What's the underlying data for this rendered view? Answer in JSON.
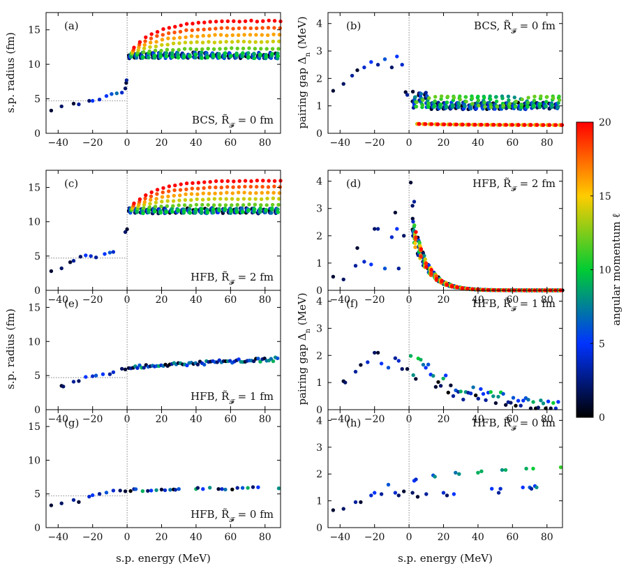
{
  "figure": {
    "xlabel": "s.p. energy (MeV)",
    "ylabel_left": "s.p. radius (fm)",
    "ylabel_right": "pairing gap Δ",
    "ylabel_right_sub": "n",
    "ylabel_right_unit": " (MeV)",
    "colorbar": {
      "label": "angular momentum ℓ",
      "ticks": [
        "0",
        "5",
        "10",
        "15",
        "20"
      ],
      "range": [
        0,
        20
      ],
      "colors": [
        "#000000",
        "#0033ff",
        "#00cc33",
        "#ffcc00",
        "#ff0000"
      ]
    }
  },
  "chart_data": [
    {
      "id": "a",
      "type": "scatter",
      "panel": "(a)",
      "annotation": "BCS, R̃",
      "annotation_sub": "𝓕",
      "annotation_tail": " = 0 fm",
      "xlim": [
        -47,
        89
      ],
      "ylim": [
        0,
        17.5
      ],
      "xticks": [
        -40,
        -20,
        0,
        20,
        40,
        60,
        80
      ],
      "yticks": [
        0,
        5,
        10,
        15
      ],
      "ref_y": 4.7,
      "bound": [
        [
          -44,
          3.3,
          1
        ],
        [
          -38,
          3.9,
          2
        ],
        [
          -31,
          4.3,
          1
        ],
        [
          -28,
          4.2,
          3
        ],
        [
          -22,
          4.7,
          2
        ],
        [
          -20,
          4.7,
          5
        ],
        [
          -16,
          4.9,
          4
        ],
        [
          -12,
          5.4,
          5
        ],
        [
          -9,
          5.7,
          6
        ],
        [
          -6,
          5.8,
          7
        ],
        [
          -3,
          5.9,
          4
        ],
        [
          -1,
          6.5,
          2
        ],
        [
          -0.5,
          7.3,
          1
        ],
        [
          -0.3,
          7.7,
          3
        ]
      ],
      "continuum": {
        "kind": "radius",
        "base": 11.3,
        "growth": 5.0,
        "jitter": 0.5,
        "spread": 0.8
      }
    },
    {
      "id": "b",
      "type": "scatter",
      "panel": "(b)",
      "annotation": "BCS, R̃",
      "annotation_sub": "𝓕",
      "annotation_tail": " = 0 fm",
      "xlim": [
        -47,
        89
      ],
      "ylim": [
        0,
        4.4
      ],
      "xticks": [
        -40,
        -20,
        0,
        20,
        40,
        60,
        80
      ],
      "yticks": [
        0,
        1,
        2,
        3,
        4
      ],
      "bound": [
        [
          -44,
          1.55,
          1
        ],
        [
          -38,
          1.8,
          2
        ],
        [
          -33,
          2.1,
          3
        ],
        [
          -30,
          2.3,
          1
        ],
        [
          -26,
          2.4,
          4
        ],
        [
          -22,
          2.6,
          5
        ],
        [
          -18,
          2.5,
          3
        ],
        [
          -14,
          2.7,
          6
        ],
        [
          -10,
          2.4,
          2
        ],
        [
          -7,
          2.8,
          5
        ],
        [
          -4,
          2.5,
          4
        ],
        [
          -2,
          1.5,
          1
        ],
        [
          -1,
          1.4,
          3
        ]
      ],
      "continuum": {
        "kind": "bcs",
        "low": 0.3,
        "mid": 1.0,
        "high": 1.3
      }
    },
    {
      "id": "c",
      "type": "scatter",
      "panel": "(c)",
      "annotation": "HFB, R̃",
      "annotation_sub": "𝓕",
      "annotation_tail": " = 2 fm",
      "xlim": [
        -47,
        89
      ],
      "ylim": [
        0,
        17.5
      ],
      "xticks": [
        -40,
        -20,
        0,
        20,
        40,
        60,
        80
      ],
      "yticks": [
        0,
        5,
        10,
        15
      ],
      "ref_y": 4.7,
      "bound": [
        [
          -44,
          2.8,
          1
        ],
        [
          -38,
          3.2,
          2
        ],
        [
          -33,
          4.1,
          1
        ],
        [
          -31,
          4.3,
          3
        ],
        [
          -27,
          4.9,
          2
        ],
        [
          -24,
          5.1,
          5
        ],
        [
          -21,
          5.0,
          4
        ],
        [
          -18,
          4.8,
          3
        ],
        [
          -13,
          5.3,
          5
        ],
        [
          -10,
          5.5,
          6
        ],
        [
          -8,
          5.6,
          4
        ],
        [
          -1,
          8.5,
          2
        ],
        [
          0,
          8.9,
          1
        ]
      ],
      "continuum": {
        "kind": "radius",
        "base": 11.6,
        "growth": 4.4,
        "jitter": 0.4,
        "spread": 0.7
      }
    },
    {
      "id": "d",
      "type": "scatter",
      "panel": "(d)",
      "annotation": "HFB, R̃",
      "annotation_sub": "𝓕",
      "annotation_tail": " = 2 fm",
      "xlim": [
        -47,
        89
      ],
      "ylim": [
        0,
        4.4
      ],
      "xticks": [
        -40,
        -20,
        0,
        20,
        40,
        60,
        80
      ],
      "yticks": [
        0,
        1,
        2,
        3,
        4
      ],
      "bound": [
        [
          -44,
          0.5,
          1
        ],
        [
          -38,
          0.4,
          2
        ],
        [
          -31,
          0.9,
          3
        ],
        [
          -30,
          1.55,
          1
        ],
        [
          -26,
          1.05,
          4
        ],
        [
          -22,
          0.95,
          5
        ],
        [
          -20,
          2.25,
          2
        ],
        [
          -18,
          2.25,
          3
        ],
        [
          -14,
          0.8,
          6
        ],
        [
          -10,
          1.95,
          4
        ],
        [
          -8,
          2.85,
          1
        ],
        [
          -7,
          2.25,
          5
        ],
        [
          -6,
          0.8,
          3
        ],
        [
          -3,
          2.0,
          2
        ],
        [
          1,
          3.95,
          1
        ],
        [
          2,
          3.1,
          2
        ],
        [
          3,
          3.25,
          3
        ]
      ],
      "continuum": {
        "kind": "decay",
        "amp": 3.0,
        "scale": 8.5
      }
    },
    {
      "id": "e",
      "type": "scatter",
      "panel": "(e)",
      "annotation": "HFB, R̃",
      "annotation_sub": "𝓕",
      "annotation_tail": " = 1 fm",
      "xlim": [
        -47,
        89
      ],
      "ylim": [
        0,
        17.5
      ],
      "xticks": [
        -40,
        -20,
        0,
        20,
        40,
        60,
        80
      ],
      "yticks": [
        0,
        5,
        10,
        15
      ],
      "ref_y": 4.7,
      "bound": [
        [
          -38,
          3.5,
          1
        ],
        [
          -37,
          3.4,
          2
        ],
        [
          -31,
          4.1,
          3
        ],
        [
          -28,
          4.2,
          2
        ],
        [
          -24,
          4.8,
          5
        ],
        [
          -20,
          4.9,
          4
        ],
        [
          -18,
          5.0,
          6
        ],
        [
          -14,
          5.2,
          5
        ],
        [
          -10,
          5.2,
          3
        ],
        [
          -8,
          5.5,
          4
        ],
        [
          -3,
          6.0,
          2
        ],
        [
          -1,
          5.9,
          1
        ]
      ],
      "continuum": {
        "kind": "flat",
        "base": 6.3,
        "end": 7.4,
        "jitter": 0.3
      }
    },
    {
      "id": "f",
      "type": "scatter",
      "panel": "(f)",
      "annotation": "HFB, R̃",
      "annotation_sub": "𝓕",
      "annotation_tail": " = 1 fm",
      "xlim": [
        -47,
        89
      ],
      "ylim": [
        0,
        4.4
      ],
      "xticks": [
        -40,
        -20,
        0,
        20,
        40,
        60,
        80
      ],
      "yticks": [
        0,
        1,
        2,
        3,
        4
      ],
      "bound": [
        [
          -38,
          1.05,
          1
        ],
        [
          -37,
          1.0,
          2
        ],
        [
          -31,
          1.4,
          3
        ],
        [
          -28,
          1.65,
          1
        ],
        [
          -24,
          1.75,
          4
        ],
        [
          -20,
          2.1,
          2
        ],
        [
          -18,
          2.1,
          1
        ],
        [
          -16,
          1.7,
          5
        ],
        [
          -12,
          1.55,
          6
        ],
        [
          -8,
          1.9,
          3
        ],
        [
          -6,
          1.8,
          4
        ],
        [
          -4,
          1.5,
          2
        ],
        [
          -1,
          1.5,
          1
        ]
      ],
      "continuum": {
        "kind": "slow",
        "amp": 1.8,
        "scale": 45
      }
    },
    {
      "id": "g",
      "type": "scatter",
      "panel": "(g)",
      "annotation": "HFB, R̃",
      "annotation_sub": "𝓕",
      "annotation_tail": " = 0 fm",
      "xlim": [
        -47,
        89
      ],
      "ylim": [
        0,
        17.5
      ],
      "xticks": [
        -40,
        -20,
        0,
        20,
        40,
        60,
        80
      ],
      "yticks": [
        0,
        5,
        10,
        15
      ],
      "ref_y": 4.7,
      "bound": [
        [
          -44,
          3.3,
          1
        ],
        [
          -38,
          3.6,
          2
        ],
        [
          -31,
          4.1,
          3
        ],
        [
          -28,
          3.8,
          1
        ],
        [
          -22,
          4.6,
          4
        ],
        [
          -20,
          4.8,
          5
        ],
        [
          -16,
          5.0,
          3
        ],
        [
          -12,
          5.2,
          6
        ],
        [
          -8,
          5.5,
          4
        ],
        [
          -4,
          5.5,
          2
        ],
        [
          -1,
          5.4,
          1
        ]
      ],
      "continuum": {
        "kind": "sparse",
        "base": 5.5,
        "end": 6.0
      }
    },
    {
      "id": "h",
      "type": "scatter",
      "panel": "(h)",
      "annotation": "HFB, R̃",
      "annotation_sub": "𝓕",
      "annotation_tail": " = 0 fm",
      "xlim": [
        -47,
        89
      ],
      "ylim": [
        0,
        4.4
      ],
      "xticks": [
        -40,
        -20,
        0,
        20,
        40,
        60,
        80
      ],
      "yticks": [
        0,
        1,
        2,
        3,
        4
      ],
      "bound": [
        [
          -44,
          0.65,
          1
        ],
        [
          -38,
          0.7,
          2
        ],
        [
          -31,
          0.95,
          3
        ],
        [
          -28,
          0.95,
          1
        ],
        [
          -22,
          1.2,
          4
        ],
        [
          -20,
          1.3,
          5
        ],
        [
          -16,
          1.25,
          3
        ],
        [
          -12,
          1.6,
          6
        ],
        [
          -8,
          1.3,
          4
        ],
        [
          -6,
          1.2,
          2
        ],
        [
          -3,
          1.35,
          1
        ]
      ],
      "continuum": {
        "kind": "sparse_gap"
      }
    }
  ]
}
